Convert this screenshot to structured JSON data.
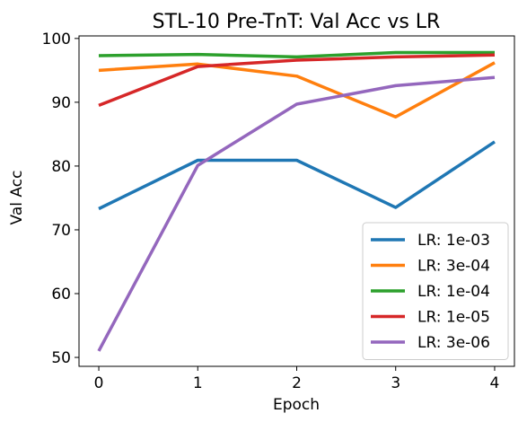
{
  "chart_data": {
    "type": "line",
    "title": "STL-10 Pre-TnT: Val Acc vs LR",
    "xlabel": "Epoch",
    "ylabel": "Val Acc",
    "x": [
      0,
      1,
      2,
      3,
      4
    ],
    "xticks": [
      0,
      1,
      2,
      3,
      4
    ],
    "xtick_labels": [
      "0",
      "1",
      "2",
      "3",
      "4"
    ],
    "yticks": [
      50,
      60,
      70,
      80,
      90,
      100
    ],
    "ytick_labels": [
      "50",
      "60",
      "70",
      "80",
      "90",
      "100"
    ],
    "xlim": [
      -0.2,
      4.2
    ],
    "ylim": [
      48.6,
      100.4
    ],
    "grid": false,
    "legend_position": "lower-right",
    "series": [
      {
        "name": "LR: 1e-03",
        "color": "#1f77b4",
        "values": [
          73.3,
          80.9,
          80.9,
          73.5,
          83.8
        ]
      },
      {
        "name": "LR: 3e-04",
        "color": "#ff7f0e",
        "values": [
          95.0,
          96.0,
          94.1,
          87.7,
          96.2
        ]
      },
      {
        "name": "LR: 1e-04",
        "color": "#2ca02c",
        "values": [
          97.3,
          97.5,
          97.1,
          97.8,
          97.8
        ]
      },
      {
        "name": "LR: 1e-05",
        "color": "#d62728",
        "values": [
          89.5,
          95.6,
          96.6,
          97.1,
          97.4
        ]
      },
      {
        "name": "LR: 3e-06",
        "color": "#9467bd",
        "values": [
          51.0,
          80.1,
          89.7,
          92.6,
          93.9
        ]
      }
    ]
  }
}
